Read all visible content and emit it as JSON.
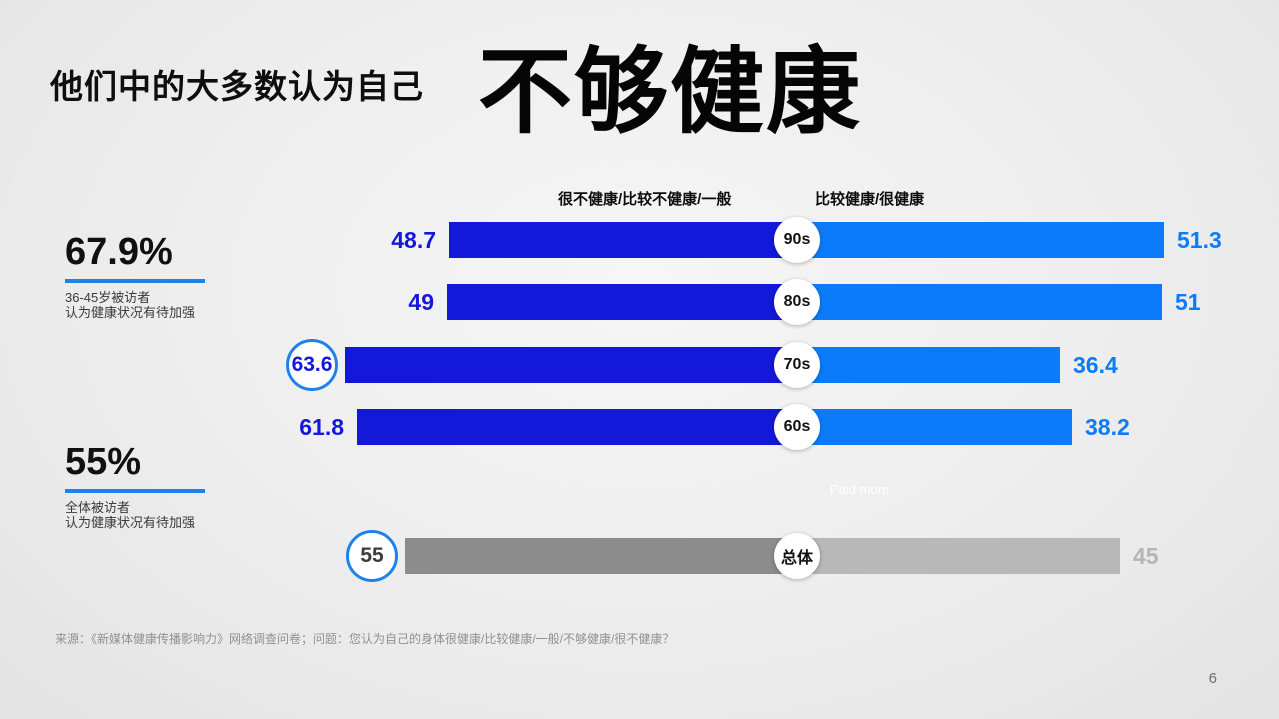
{
  "title": {
    "prefix": "他们中的大多数认为自己",
    "highlight": "不够健康"
  },
  "stats": [
    {
      "value": "67.9%",
      "lines": [
        "36-45岁被访者",
        "认为健康状况有待加强"
      ]
    },
    {
      "value": "55%",
      "lines": [
        "全体被访者",
        "认为健康状况有待加强"
      ]
    }
  ],
  "legend": [
    {
      "label": "很不健康/比较不健康/一般"
    },
    {
      "label": "比较健康/很健康"
    }
  ],
  "watermark": "Paid more",
  "footer": "来源：《新媒体健康传播影响力》网络调查问卷；问题：您认为自己的身体很健康/比较健康/一般/不够健康/很不健康？",
  "page_number": "6",
  "chart_data": {
    "type": "bar",
    "subtype": "diverging-horizontal",
    "title": "他们中的大多数认为自己不够健康",
    "categories": [
      "90s",
      "80s",
      "70s",
      "60s",
      "总体"
    ],
    "series": [
      {
        "name": "很不健康/比较不健康/一般",
        "values": [
          48.7,
          49,
          63.6,
          61.8,
          55
        ]
      },
      {
        "name": "比较健康/很健康",
        "values": [
          51.3,
          51,
          36.4,
          38.2,
          45
        ]
      }
    ],
    "rows": [
      {
        "category": "90s",
        "left": 48.7,
        "right": 51.3,
        "left_display": "48.7",
        "right_display": "51.3",
        "left_circled": false,
        "palette": "blue"
      },
      {
        "category": "80s",
        "left": 49,
        "right": 51,
        "left_display": "49",
        "right_display": "51",
        "left_circled": false,
        "palette": "blue"
      },
      {
        "category": "70s",
        "left": 63.6,
        "right": 36.4,
        "left_display": "63.6",
        "right_display": "36.4",
        "left_circled": true,
        "palette": "blue"
      },
      {
        "category": "60s",
        "left": 61.8,
        "right": 38.2,
        "left_display": "61.8",
        "right_display": "38.2",
        "left_circled": false,
        "palette": "blue"
      },
      {
        "category": "总体",
        "left": 55,
        "right": 45,
        "left_display": "55",
        "right_display": "45",
        "left_circled": true,
        "palette": "gray"
      }
    ],
    "colors": {
      "blue": {
        "left": "#1418d8",
        "right": "#0c7bfa",
        "leftText": "#1418d8",
        "rightText": "#0c7bfa"
      },
      "gray": {
        "left": "#8c8c8c",
        "right": "#b8b8b8",
        "leftText": "#3c3c3c",
        "rightText": "#b5b5b5"
      },
      "accent": "#1e82ee"
    },
    "legend_position": "top",
    "grid": false,
    "xlim": [
      0,
      100
    ]
  }
}
